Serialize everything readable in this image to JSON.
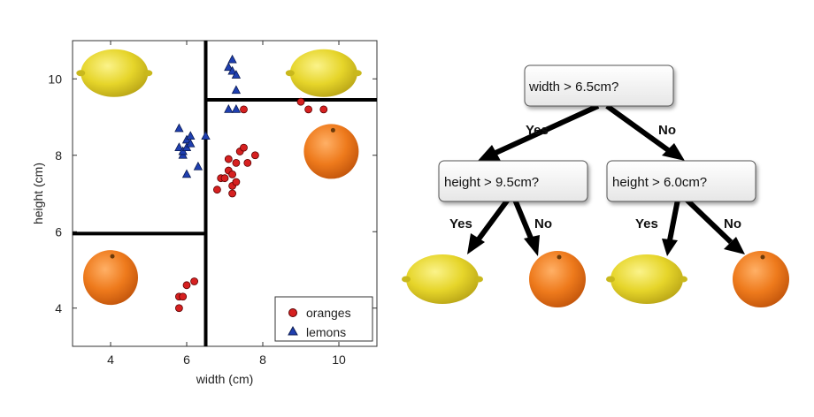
{
  "chart_data": {
    "type": "scatter",
    "xlabel": "width (cm)",
    "ylabel": "height (cm)",
    "xlim": [
      3,
      11
    ],
    "ylim": [
      3,
      11
    ],
    "xticks": [
      "4",
      "6",
      "8",
      "10"
    ],
    "yticks": [
      "4",
      "6",
      "8",
      "10"
    ],
    "grid": false,
    "legend_position": "bottom-right",
    "series": [
      {
        "name": "oranges",
        "marker": "circle",
        "color": "#d62020",
        "points": [
          [
            5.8,
            4.0
          ],
          [
            5.8,
            4.3
          ],
          [
            5.9,
            4.3
          ],
          [
            6.0,
            4.6
          ],
          [
            6.2,
            4.7
          ],
          [
            6.8,
            7.1
          ],
          [
            6.9,
            7.4
          ],
          [
            7.0,
            7.4
          ],
          [
            7.1,
            7.6
          ],
          [
            7.1,
            7.9
          ],
          [
            7.2,
            7.5
          ],
          [
            7.2,
            7.2
          ],
          [
            7.2,
            7.0
          ],
          [
            7.3,
            7.8
          ],
          [
            7.3,
            7.3
          ],
          [
            7.4,
            8.1
          ],
          [
            7.5,
            8.2
          ],
          [
            7.6,
            7.8
          ],
          [
            7.8,
            8.0
          ],
          [
            7.5,
            9.2
          ],
          [
            9.0,
            9.4
          ],
          [
            9.2,
            9.2
          ],
          [
            9.6,
            9.2
          ]
        ]
      },
      {
        "name": "lemons",
        "marker": "triangle",
        "color": "#1f3fb0",
        "points": [
          [
            5.8,
            8.7
          ],
          [
            5.8,
            8.2
          ],
          [
            5.9,
            8.0
          ],
          [
            5.9,
            8.1
          ],
          [
            6.0,
            8.4
          ],
          [
            6.0,
            8.2
          ],
          [
            6.1,
            8.5
          ],
          [
            6.1,
            8.3
          ],
          [
            6.0,
            7.5
          ],
          [
            6.3,
            7.7
          ],
          [
            6.5,
            8.5
          ],
          [
            7.1,
            9.2
          ],
          [
            7.1,
            10.3
          ],
          [
            7.2,
            10.5
          ],
          [
            7.2,
            10.2
          ],
          [
            7.3,
            10.1
          ],
          [
            7.3,
            9.7
          ],
          [
            7.3,
            9.2
          ]
        ]
      }
    ],
    "decision_lines": [
      {
        "orientation": "vertical",
        "x": 6.5,
        "from": 3,
        "to": 11
      },
      {
        "orientation": "horizontal",
        "y": 9.45,
        "from": 6.5,
        "to": 11
      },
      {
        "orientation": "horizontal",
        "y": 5.95,
        "from": 3,
        "to": 6.5
      }
    ],
    "fruit_images": [
      {
        "kind": "lemon",
        "region": "top-left"
      },
      {
        "kind": "lemon",
        "region": "top-right"
      },
      {
        "kind": "orange",
        "region": "middle-right"
      },
      {
        "kind": "orange",
        "region": "bottom-left"
      }
    ]
  },
  "tree": {
    "root": {
      "label": "width > 6.5cm?"
    },
    "left": {
      "label": "height > 9.5cm?"
    },
    "right": {
      "label": "height > 6.0cm?"
    },
    "edges": {
      "root_yes": "Yes",
      "root_no": "No",
      "left_yes": "Yes",
      "left_no": "No",
      "right_yes": "Yes",
      "right_no": "No"
    },
    "leaves": [
      "lemon",
      "orange",
      "lemon",
      "orange"
    ]
  },
  "colors": {
    "lemon": "#e8d830",
    "orange": "#e8751a",
    "node_fill": "#f4f4f4",
    "node_stroke": "#555555"
  }
}
